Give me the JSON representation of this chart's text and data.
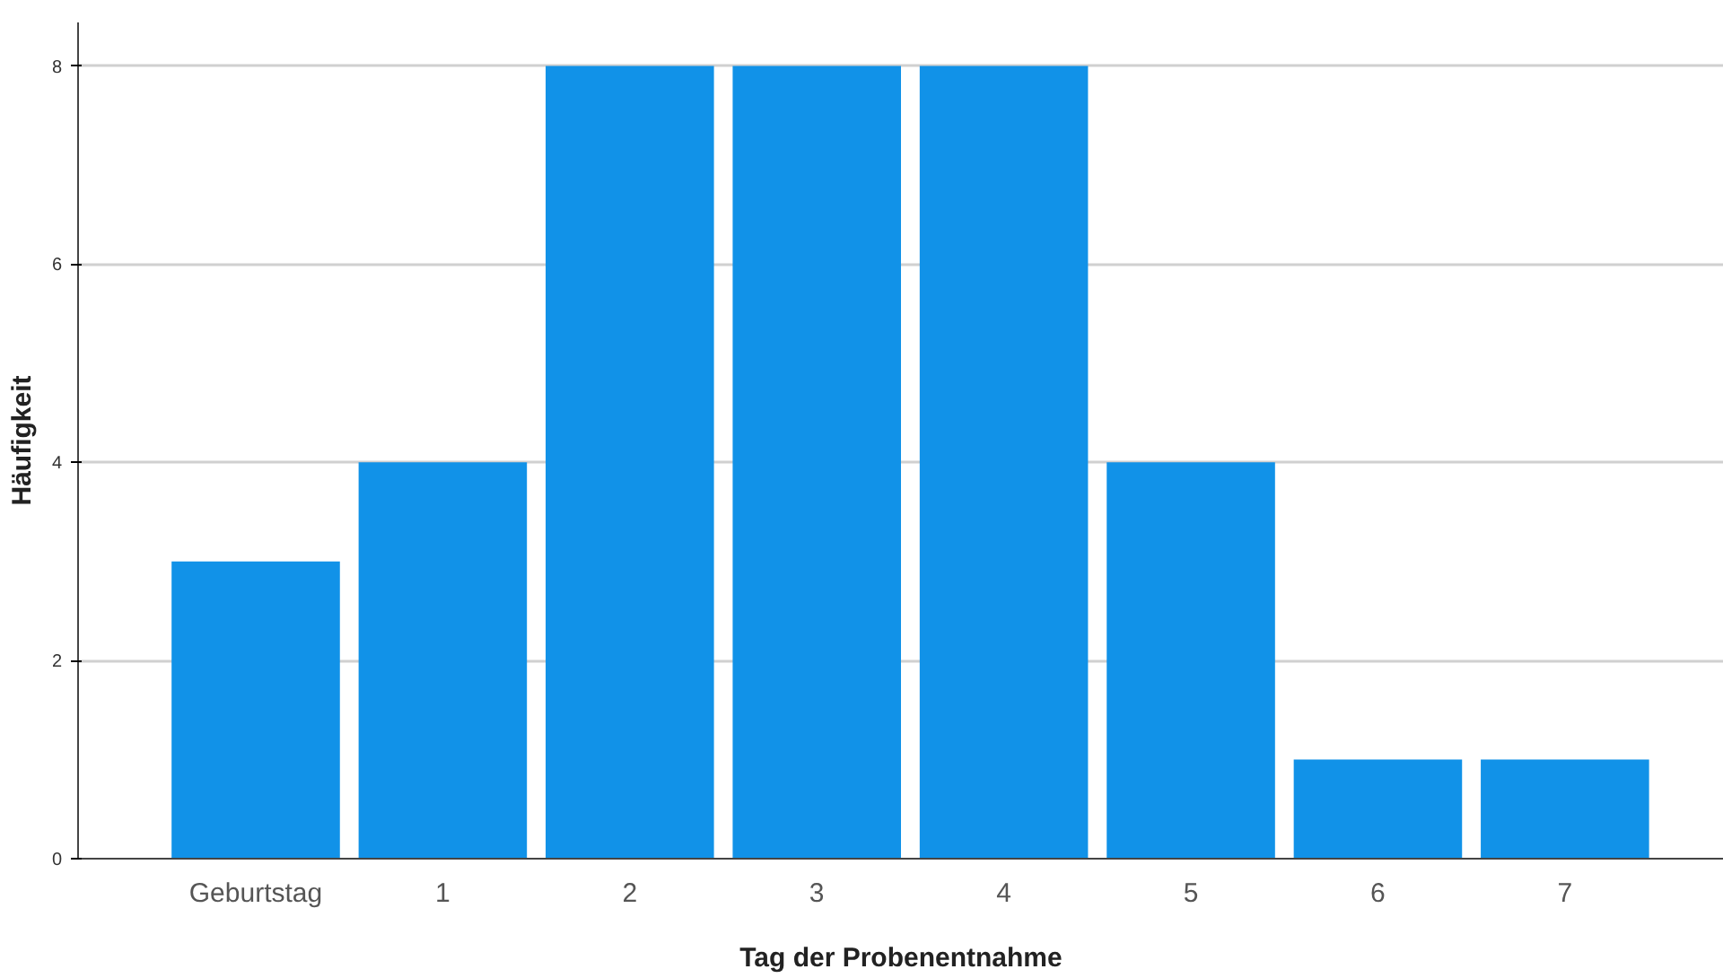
{
  "chart_data": {
    "type": "bar",
    "xlabel": "Tag der Probenentnahme",
    "ylabel": "Häufigkeit",
    "categories": [
      "Geburtstag",
      "1",
      "2",
      "3",
      "4",
      "5",
      "6",
      "7"
    ],
    "values": [
      3,
      4,
      8,
      8,
      8,
      4,
      1,
      1
    ],
    "color": "#1192e8",
    "ylim": [
      0,
      8.44
    ],
    "yticks": [
      0,
      2,
      4,
      6,
      8
    ],
    "grid": "y"
  }
}
